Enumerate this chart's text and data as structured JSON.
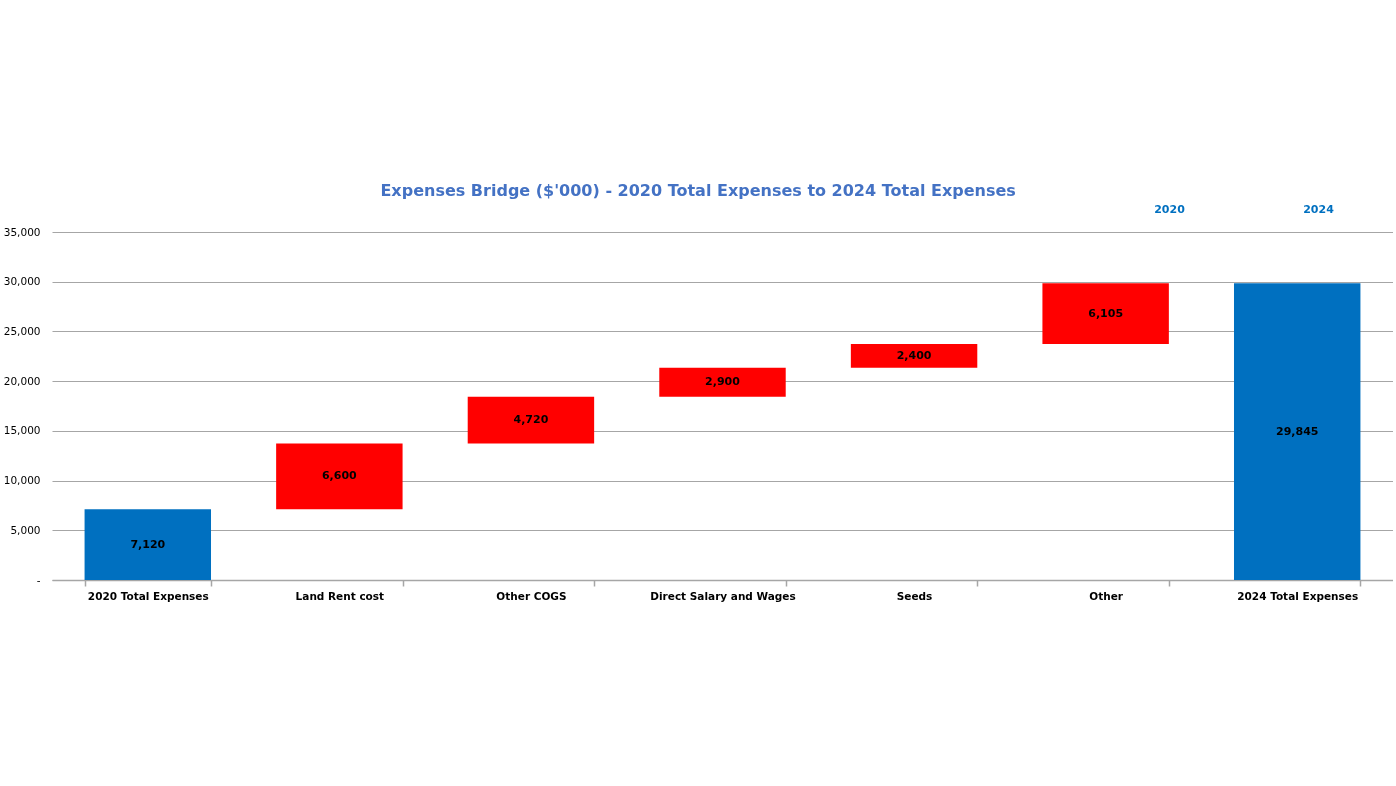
{
  "chart_data": {
    "type": "bar",
    "title": "Expenses Bridge ($'000) - 2020 Total Expenses to 2024 Total Expenses",
    "categories": [
      "2020 Total Expenses",
      "Land Rent cost",
      "Other COGS",
      "Direct Salary and Wages",
      "Seeds",
      "Other",
      "2024 Total Expenses"
    ],
    "values": [
      7120,
      6600,
      4720,
      2900,
      2400,
      6105,
      29845
    ],
    "value_labels": [
      "7,120",
      "6,600",
      "4,720",
      "2,900",
      "2,400",
      "6,105",
      "29,845"
    ],
    "base": [
      0,
      7120,
      13720,
      18440,
      21340,
      23740,
      0
    ],
    "colors": [
      "#0070c0",
      "#ff0000",
      "#ff0000",
      "#ff0000",
      "#ff0000",
      "#ff0000",
      "#0070c0"
    ],
    "ylim": [
      0,
      35000
    ],
    "yticks": [
      {
        "value": 0,
        "label": "-"
      },
      {
        "value": 5000,
        "label": "5,000"
      },
      {
        "value": 10000,
        "label": "10,000"
      },
      {
        "value": 15000,
        "label": "15,000"
      },
      {
        "value": 20000,
        "label": "20,000"
      },
      {
        "value": 25000,
        "label": "25,000"
      },
      {
        "value": 30000,
        "label": "30,000"
      },
      {
        "value": 35000,
        "label": "35,000"
      }
    ],
    "grid": "y",
    "annotations": [
      "2020",
      "2024"
    ]
  }
}
